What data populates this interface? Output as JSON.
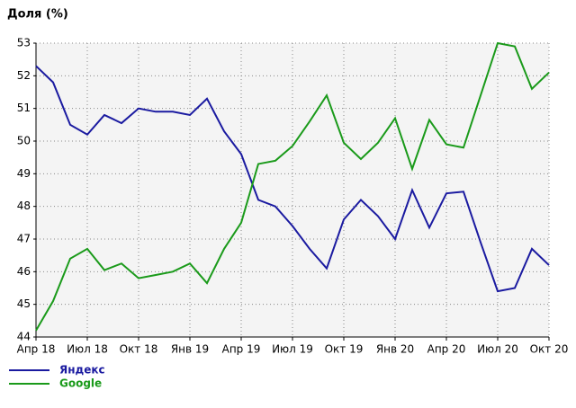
{
  "chart_data": {
    "type": "line",
    "title": "Доля (%)",
    "categories": [
      "Апр 18",
      null,
      null,
      "Июл 18",
      null,
      null,
      "Окт 18",
      null,
      null,
      "Янв 19",
      null,
      null,
      "Апр 19",
      null,
      null,
      "Июл 19",
      null,
      null,
      "Окт 19",
      null,
      null,
      "Янв 20",
      null,
      null,
      "Апр 20",
      null,
      null,
      "Июл 20",
      null,
      null,
      "Окт 20"
    ],
    "series": [
      {
        "name": "Яндекс",
        "color": "#1a1aa0",
        "values": [
          52.3,
          51.8,
          50.5,
          50.2,
          50.8,
          50.55,
          51.0,
          50.9,
          50.9,
          50.8,
          51.3,
          50.3,
          49.6,
          48.2,
          48.0,
          47.4,
          46.7,
          46.1,
          47.6,
          48.2,
          47.7,
          47.0,
          48.5,
          47.35,
          48.4,
          48.45,
          46.9,
          45.4,
          45.5,
          46.7,
          46.2
        ]
      },
      {
        "name": "Google",
        "color": "#1a9a1a",
        "values": [
          44.2,
          45.1,
          46.4,
          46.7,
          46.05,
          46.25,
          45.8,
          45.9,
          46.0,
          46.25,
          45.65,
          46.7,
          47.5,
          49.3,
          49.4,
          49.85,
          50.6,
          51.4,
          49.95,
          49.45,
          49.95,
          50.7,
          49.15,
          50.65,
          49.9,
          49.8,
          51.4,
          53.0,
          52.9,
          51.6,
          52.1
        ]
      }
    ],
    "ylim": [
      44,
      53
    ],
    "yticks": [
      44,
      45,
      46,
      47,
      48,
      49,
      50,
      51,
      52,
      53
    ],
    "grid": true
  }
}
